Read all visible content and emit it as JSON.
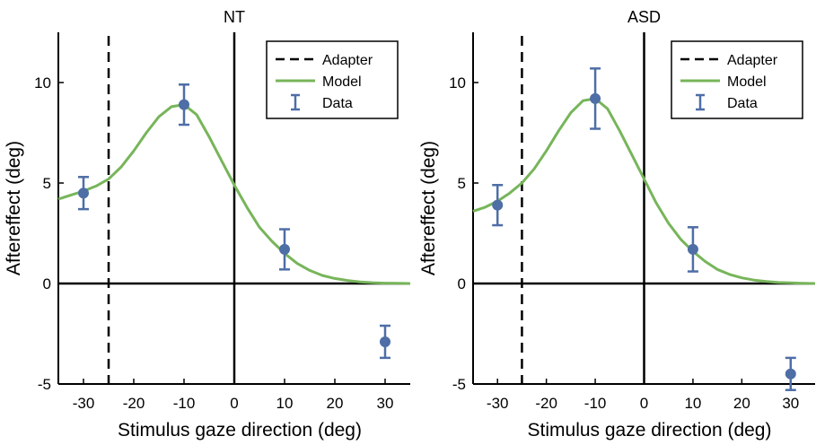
{
  "chart_data": [
    {
      "type": "line",
      "title": "NT",
      "xlabel": "Stimulus gaze direction (deg)",
      "ylabel": "Aftereffect (deg)",
      "xlim": [
        -35,
        35
      ],
      "ylim": [
        -5,
        12.5
      ],
      "xticks": [
        -30,
        -20,
        -10,
        0,
        10,
        20,
        30
      ],
      "yticks": [
        -5,
        0,
        5,
        10
      ],
      "grid": false,
      "legend_position": "top-right",
      "legend": [
        "Adapter",
        "Model",
        "Data"
      ],
      "adapter_x": -25,
      "reference_lines": {
        "x": 0,
        "y": 0
      },
      "colors": {
        "model": "#77b55a",
        "data": "#4e6ea6",
        "adapter": "#000000"
      },
      "model": {
        "name": "Model",
        "x": [
          -35,
          -32.5,
          -30,
          -27.5,
          -25,
          -22.5,
          -20,
          -17.5,
          -15,
          -12.5,
          -10,
          -7.5,
          -5,
          -2.5,
          0,
          2.5,
          5,
          7.5,
          10,
          12.5,
          15,
          17.5,
          20,
          22.5,
          25,
          27.5,
          30,
          32.5,
          35
        ],
        "y": [
          4.2,
          4.4,
          4.6,
          4.85,
          5.2,
          5.8,
          6.6,
          7.5,
          8.3,
          8.8,
          8.9,
          8.4,
          7.3,
          6.1,
          4.9,
          3.8,
          2.8,
          2.1,
          1.5,
          1.0,
          0.65,
          0.4,
          0.25,
          0.15,
          0.08,
          0.04,
          0.02,
          0.01,
          0.0
        ]
      },
      "data_points": {
        "name": "Data",
        "x": [
          -30,
          -10,
          10,
          30
        ],
        "y": [
          4.5,
          8.9,
          1.7,
          -2.9
        ],
        "err": [
          0.8,
          1.0,
          1.0,
          0.8
        ]
      }
    },
    {
      "type": "line",
      "title": "ASD",
      "xlabel": "Stimulus gaze direction (deg)",
      "ylabel": "Aftereffect (deg)",
      "xlim": [
        -35,
        35
      ],
      "ylim": [
        -5,
        12.5
      ],
      "xticks": [
        -30,
        -20,
        -10,
        0,
        10,
        20,
        30
      ],
      "yticks": [
        -5,
        0,
        5,
        10
      ],
      "grid": false,
      "legend_position": "top-right",
      "legend": [
        "Adapter",
        "Model",
        "Data"
      ],
      "adapter_x": -25,
      "reference_lines": {
        "x": 0,
        "y": 0
      },
      "colors": {
        "model": "#77b55a",
        "data": "#4e6ea6",
        "adapter": "#000000"
      },
      "model": {
        "name": "Model",
        "x": [
          -35,
          -32.5,
          -30,
          -27.5,
          -25,
          -22.5,
          -20,
          -17.5,
          -15,
          -12.5,
          -10,
          -7.5,
          -5,
          -2.5,
          0,
          2.5,
          5,
          7.5,
          10,
          12.5,
          15,
          17.5,
          20,
          22.5,
          25,
          27.5,
          30,
          32.5,
          35
        ],
        "y": [
          3.6,
          3.8,
          4.1,
          4.5,
          5.0,
          5.7,
          6.6,
          7.6,
          8.5,
          9.1,
          9.2,
          8.7,
          7.6,
          6.4,
          5.2,
          4.0,
          3.0,
          2.2,
          1.6,
          1.1,
          0.7,
          0.45,
          0.28,
          0.17,
          0.1,
          0.05,
          0.03,
          0.01,
          0.0
        ]
      },
      "data_points": {
        "name": "Data",
        "x": [
          -30,
          -10,
          10,
          30
        ],
        "y": [
          3.9,
          9.2,
          1.7,
          -4.5
        ],
        "err": [
          1.0,
          1.5,
          1.1,
          0.8
        ]
      }
    }
  ]
}
